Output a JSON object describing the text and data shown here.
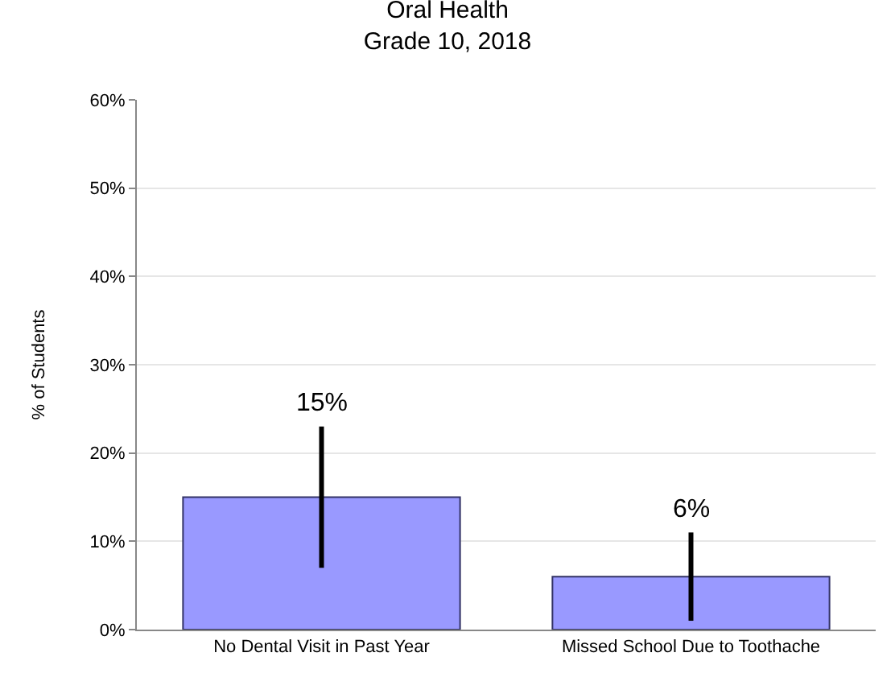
{
  "chart_data": {
    "type": "bar",
    "title": "Oral Health\nGrade 10, 2018",
    "ylabel": "% of Students",
    "categories": [
      "No Dental Visit in Past Year",
      "Missed School Due to Toothache"
    ],
    "values": [
      15,
      6
    ],
    "color": "#9999ff",
    "errors": [
      [
        7,
        23
      ],
      [
        1,
        11
      ]
    ],
    "value_labels": [
      "15%",
      "6%"
    ],
    "ylim": [
      0,
      60
    ],
    "yticks": [
      {
        "value": 0,
        "label": "0%"
      },
      {
        "value": 10,
        "label": "10%"
      },
      {
        "value": 20,
        "label": "20%"
      },
      {
        "value": 30,
        "label": "30%"
      },
      {
        "value": 40,
        "label": "40%"
      },
      {
        "value": 50,
        "label": "50%"
      },
      {
        "value": 60,
        "label": "60%"
      }
    ],
    "grid": "y",
    "legend": false
  }
}
